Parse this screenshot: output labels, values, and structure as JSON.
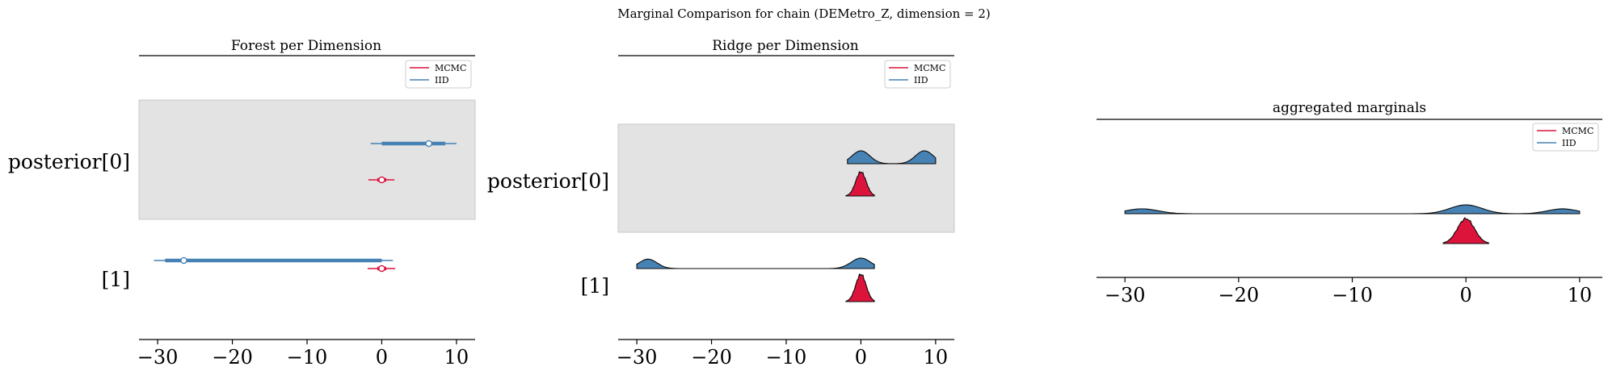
{
  "figure": {
    "suptitle": "Marginal Comparison for chain (DEMetro_Z, dimension = 2)"
  },
  "colors": {
    "mcmc": "#dc143c",
    "iid": "#4682b4",
    "band": "#e3e3e3",
    "axis": "#000000"
  },
  "chart_data": [
    {
      "type": "forest",
      "title": "Forest per Dimension",
      "xlim": [
        -32.5,
        12.5
      ],
      "xticks": [
        -30,
        -20,
        -10,
        0,
        10
      ],
      "xtick_labels": [
        "−30",
        "−20",
        "−10",
        "0",
        "10"
      ],
      "ylabels": [
        "posterior[0]",
        "[1]"
      ],
      "legend": {
        "position": "top-right",
        "entries": [
          "MCMC",
          "IID"
        ]
      },
      "series": [
        {
          "name": "IID",
          "color": "#4682b4",
          "rows": [
            {
              "label": "posterior[0]",
              "mean": 6.3,
              "hdi_inner": [
                0.0,
                8.5
              ],
              "hdi_outer": [
                -1.5,
                10.0
              ]
            },
            {
              "label": "[1]",
              "mean": -26.5,
              "hdi_inner": [
                -29.0,
                0.0
              ],
              "hdi_outer": [
                -30.5,
                1.5
              ]
            }
          ]
        },
        {
          "name": "MCMC",
          "color": "#dc143c",
          "rows": [
            {
              "label": "posterior[0]",
              "mean": 0.0,
              "hdi_inner": [
                -0.6,
                0.6
              ],
              "hdi_outer": [
                -1.8,
                1.7
              ]
            },
            {
              "label": "[1]",
              "mean": 0.0,
              "hdi_inner": [
                -0.6,
                0.6
              ],
              "hdi_outer": [
                -1.9,
                1.8
              ]
            }
          ]
        }
      ]
    },
    {
      "type": "ridge",
      "title": "Ridge per Dimension",
      "xlim": [
        -32.5,
        12.5
      ],
      "xticks": [
        -30,
        -20,
        -10,
        0,
        10
      ],
      "xtick_labels": [
        "−30",
        "−20",
        "−10",
        "0",
        "10"
      ],
      "ylabels": [
        "posterior[0]",
        "[1]"
      ],
      "legend": {
        "position": "top-right",
        "entries": [
          "MCMC",
          "IID"
        ]
      },
      "series": [
        {
          "name": "IID",
          "color": "#4682b4",
          "rows": [
            {
              "label": "posterior[0]",
              "range": [
                -1.8,
                10.0
              ],
              "peaks": [
                {
                  "mu": 0.0,
                  "sigma": 1.2,
                  "h": 1.0
                },
                {
                  "mu": 8.5,
                  "sigma": 1.2,
                  "h": 1.0
                }
              ]
            },
            {
              "label": "[1]",
              "range": [
                -30.0,
                1.8
              ],
              "peaks": [
                {
                  "mu": -28.5,
                  "sigma": 1.2,
                  "h": 0.9
                },
                {
                  "mu": 0.0,
                  "sigma": 1.3,
                  "h": 1.0
                }
              ]
            }
          ]
        },
        {
          "name": "MCMC",
          "color": "#dc143c",
          "rows": [
            {
              "label": "posterior[0]",
              "range": [
                -2.0,
                1.8
              ],
              "peaks": [
                {
                  "mu": 0.0,
                  "sigma": 0.7,
                  "h": 1.0
                }
              ]
            },
            {
              "label": "[1]",
              "range": [
                -2.0,
                1.8
              ],
              "peaks": [
                {
                  "mu": 0.0,
                  "sigma": 0.7,
                  "h": 1.0
                }
              ]
            }
          ]
        }
      ]
    },
    {
      "type": "ridge",
      "title": "aggregated marginals",
      "xlim": [
        -32.5,
        12.0
      ],
      "xticks": [
        -30,
        -20,
        -10,
        0,
        10
      ],
      "xtick_labels": [
        "−30",
        "−20",
        "−10",
        "0",
        "10"
      ],
      "legend": {
        "position": "top-right",
        "entries": [
          "MCMC",
          "IID"
        ]
      },
      "series": [
        {
          "name": "IID",
          "color": "#4682b4",
          "range": [
            -30.0,
            10.0
          ],
          "peaks": [
            {
              "mu": -28.5,
              "sigma": 1.4,
              "h": 0.55
            },
            {
              "mu": 0.0,
              "sigma": 1.4,
              "h": 1.0
            },
            {
              "mu": 8.5,
              "sigma": 1.3,
              "h": 0.55
            }
          ]
        },
        {
          "name": "MCMC",
          "color": "#dc143c",
          "range": [
            -2.0,
            2.0
          ],
          "peaks": [
            {
              "mu": 0.0,
              "sigma": 0.75,
              "h": 1.0
            }
          ]
        }
      ]
    }
  ]
}
